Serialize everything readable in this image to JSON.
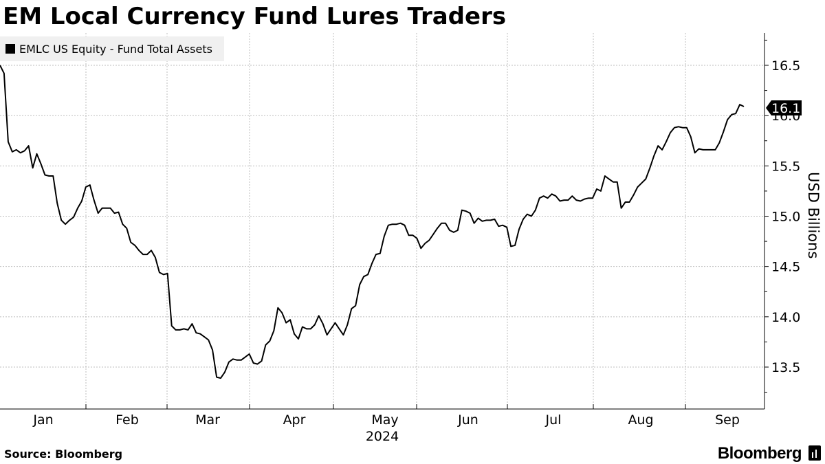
{
  "title": "EM Local Currency Fund Lures Traders",
  "source": "Source: Bloomberg",
  "brand": "Bloomberg",
  "chart_data": {
    "type": "line",
    "legend": {
      "label": "EMLC US Equity - Fund Total Assets",
      "placement": "top-left"
    },
    "ylabel": "USD Billions",
    "xlabel": "2024",
    "ylim": [
      13.2,
      16.8
    ],
    "yticks": [
      "13.5",
      "14.0",
      "14.5",
      "15.0",
      "15.5",
      "16.0",
      "16.5"
    ],
    "xticks": [
      "Jan",
      "Feb",
      "Mar",
      "Apr",
      "May",
      "Jun",
      "Jul",
      "Aug",
      "Sep"
    ],
    "last_value_label": "16.1",
    "grid": true,
    "line_color": "#000000",
    "series": [
      {
        "values": [
          16.5,
          16.42,
          15.74,
          15.64,
          15.66,
          15.63,
          15.65,
          15.7,
          15.48,
          15.62,
          15.52,
          15.41,
          15.4,
          15.4,
          15.13,
          14.96,
          14.92,
          14.96,
          14.99,
          15.08,
          15.15,
          15.29,
          15.31,
          15.16,
          15.03,
          15.08,
          15.08,
          15.08,
          15.03,
          15.04,
          14.92,
          14.88,
          14.74,
          14.71,
          14.66,
          14.62,
          14.62,
          14.66,
          14.59,
          14.44,
          14.42,
          14.43,
          13.91,
          13.87,
          13.87,
          13.88,
          13.87,
          13.93,
          13.84,
          13.83,
          13.8,
          13.77,
          13.67,
          13.4,
          13.39,
          13.45,
          13.55,
          13.58,
          13.57,
          13.57,
          13.6,
          13.63,
          13.54,
          13.53,
          13.56,
          13.72,
          13.76,
          13.86,
          14.09,
          14.04,
          13.94,
          13.97,
          13.83,
          13.78,
          13.9,
          13.88,
          13.88,
          13.92,
          14.01,
          13.93,
          13.82,
          13.88,
          13.94,
          13.88,
          13.82,
          13.92,
          14.08,
          14.11,
          14.32,
          14.4,
          14.42,
          14.53,
          14.62,
          14.63,
          14.8,
          14.91,
          14.92,
          14.92,
          14.93,
          14.91,
          14.81,
          14.81,
          14.78,
          14.68,
          14.73,
          14.76,
          14.82,
          14.88,
          14.93,
          14.93,
          14.86,
          14.84,
          14.86,
          15.06,
          15.05,
          15.03,
          14.93,
          14.98,
          14.95,
          14.96,
          14.96,
          14.97,
          14.9,
          14.91,
          14.89,
          14.7,
          14.71,
          14.87,
          14.97,
          15.02,
          15.0,
          15.06,
          15.18,
          15.2,
          15.18,
          15.22,
          15.2,
          15.15,
          15.16,
          15.16,
          15.2,
          15.16,
          15.15,
          15.17,
          15.18,
          15.18,
          15.27,
          15.25,
          15.4,
          15.37,
          15.34,
          15.34,
          15.08,
          15.14,
          15.14,
          15.21,
          15.29,
          15.33,
          15.37,
          15.48,
          15.6,
          15.7,
          15.66,
          15.74,
          15.83,
          15.88,
          15.89,
          15.88,
          15.88,
          15.79,
          15.63,
          15.67,
          15.66,
          15.66,
          15.66,
          15.66,
          15.73,
          15.84,
          15.96,
          16.01,
          16.02,
          16.11,
          16.09
        ]
      }
    ]
  }
}
